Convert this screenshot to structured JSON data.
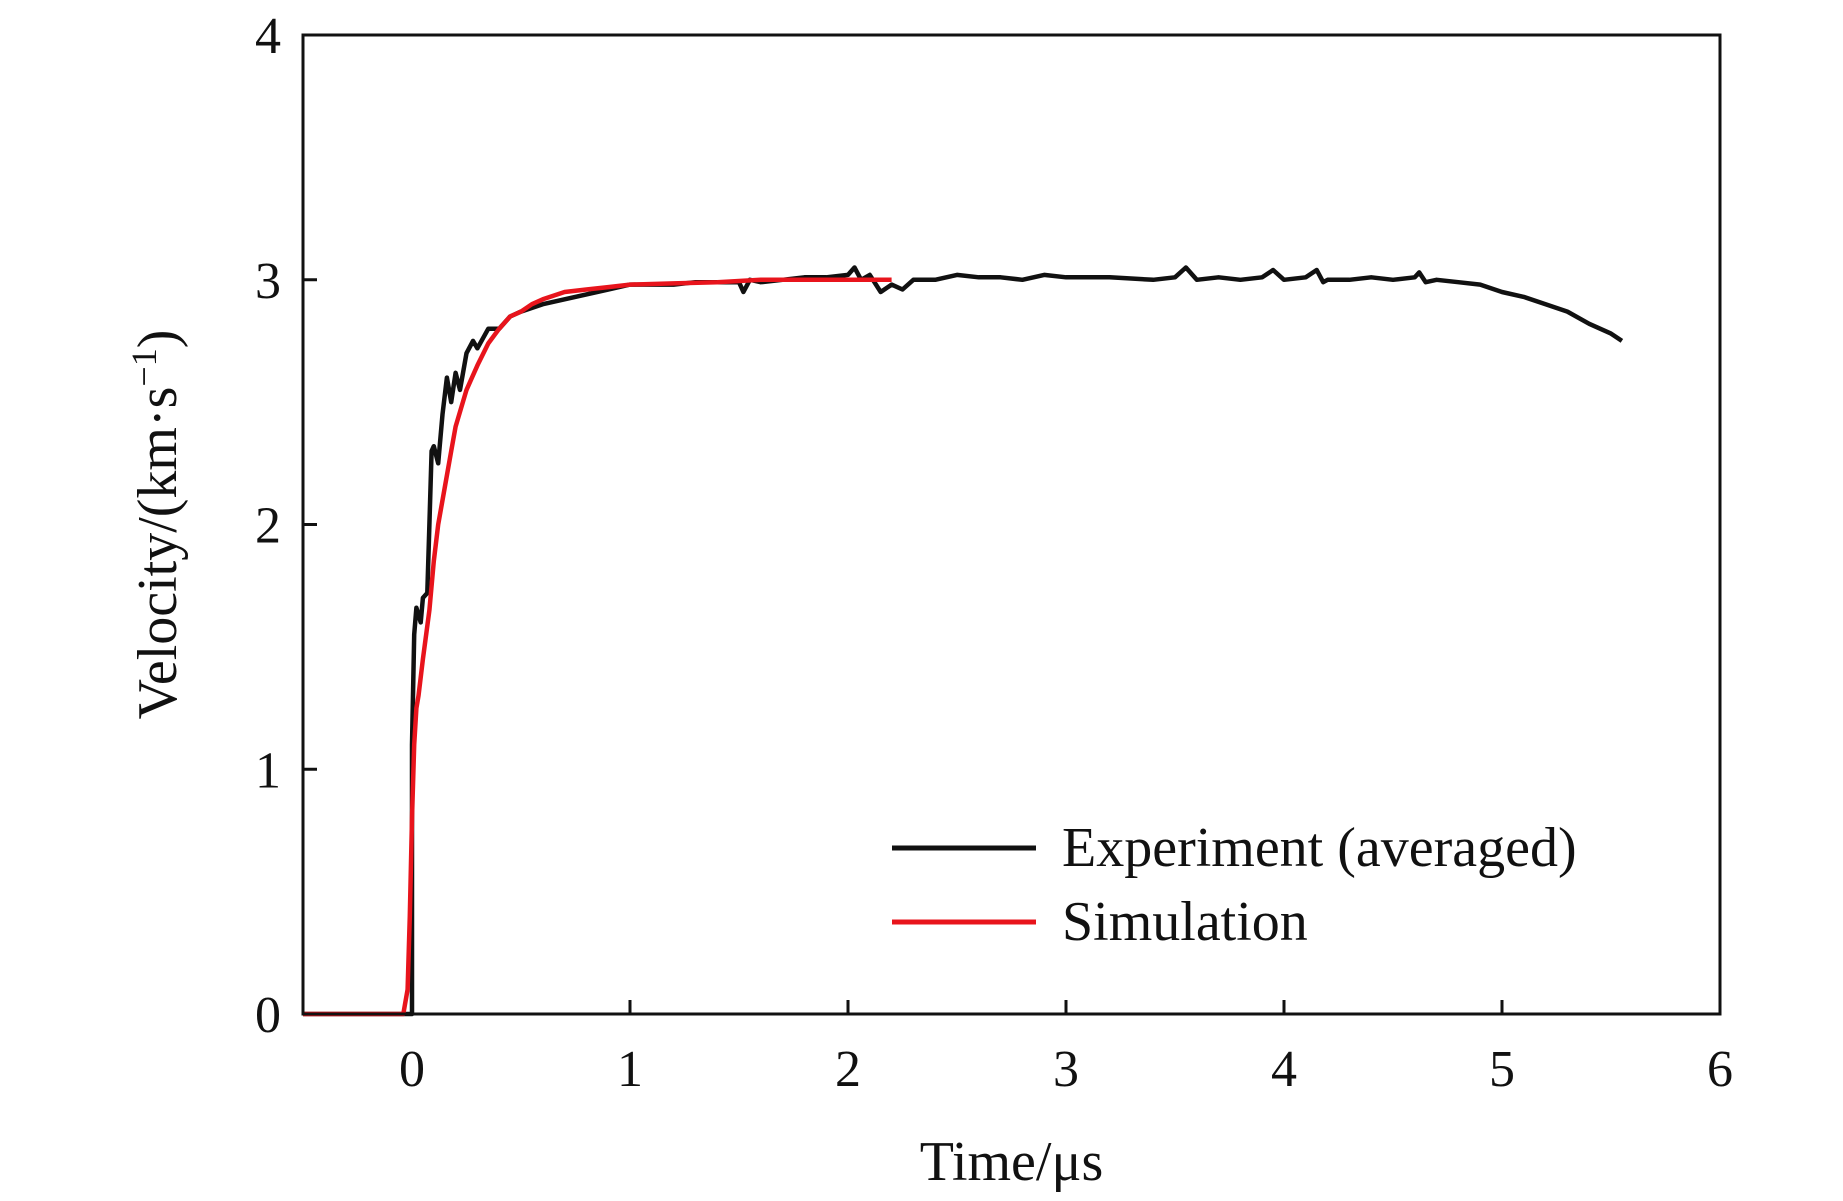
{
  "chart_data": {
    "type": "line",
    "title": "",
    "xlabel": "Time/μs",
    "ylabel": "Velocity/(km·s",
    "ylabel_unit_exponent": "−1",
    "ylabel_close": ")",
    "xlim": [
      -0.5,
      6
    ],
    "ylim": [
      0,
      4
    ],
    "xticks": [
      0,
      1,
      2,
      3,
      4,
      5,
      6
    ],
    "yticks": [
      0,
      1,
      2,
      3,
      4
    ],
    "grid": false,
    "legend_position": "bottom-right",
    "series": [
      {
        "name": "Experiment (averaged)",
        "color": "#111111",
        "x": [
          -0.5,
          -0.02,
          0.0,
          0.0,
          0.01,
          0.02,
          0.04,
          0.05,
          0.07,
          0.08,
          0.09,
          0.1,
          0.12,
          0.14,
          0.16,
          0.18,
          0.2,
          0.22,
          0.25,
          0.28,
          0.3,
          0.35,
          0.4,
          0.45,
          0.5,
          0.6,
          0.7,
          0.8,
          0.9,
          1.0,
          1.1,
          1.2,
          1.3,
          1.4,
          1.5,
          1.52,
          1.55,
          1.6,
          1.7,
          1.8,
          1.9,
          2.0,
          2.03,
          2.06,
          2.1,
          2.15,
          2.2,
          2.25,
          2.3,
          2.4,
          2.5,
          2.6,
          2.7,
          2.8,
          2.9,
          3.0,
          3.2,
          3.4,
          3.5,
          3.55,
          3.6,
          3.7,
          3.8,
          3.9,
          3.95,
          4.0,
          4.1,
          4.15,
          4.18,
          4.2,
          4.3,
          4.4,
          4.5,
          4.6,
          4.62,
          4.65,
          4.7,
          4.8,
          4.9,
          5.0,
          5.1,
          5.2,
          5.3,
          5.4,
          5.5,
          5.55
        ],
        "y": [
          0.0,
          0.0,
          0.0,
          1.1,
          1.55,
          1.66,
          1.6,
          1.7,
          1.72,
          2.0,
          2.3,
          2.32,
          2.25,
          2.45,
          2.6,
          2.5,
          2.62,
          2.55,
          2.7,
          2.75,
          2.72,
          2.8,
          2.8,
          2.85,
          2.87,
          2.9,
          2.92,
          2.94,
          2.96,
          2.98,
          2.98,
          2.98,
          2.99,
          2.99,
          2.99,
          2.95,
          3.0,
          2.99,
          3.0,
          3.01,
          3.01,
          3.02,
          3.05,
          3.0,
          3.02,
          2.95,
          2.98,
          2.96,
          3.0,
          3.0,
          3.02,
          3.01,
          3.01,
          3.0,
          3.02,
          3.01,
          3.01,
          3.0,
          3.01,
          3.05,
          3.0,
          3.01,
          3.0,
          3.01,
          3.04,
          3.0,
          3.01,
          3.04,
          2.99,
          3.0,
          3.0,
          3.01,
          3.0,
          3.01,
          3.03,
          2.99,
          3.0,
          2.99,
          2.98,
          2.95,
          2.93,
          2.9,
          2.87,
          2.82,
          2.78,
          2.75
        ]
      },
      {
        "name": "Simulation",
        "color": "#e8141c",
        "x": [
          -0.5,
          -0.04,
          -0.02,
          -0.01,
          0.0,
          0.01,
          0.02,
          0.03,
          0.05,
          0.08,
          0.1,
          0.12,
          0.15,
          0.18,
          0.2,
          0.25,
          0.3,
          0.35,
          0.4,
          0.45,
          0.5,
          0.55,
          0.6,
          0.7,
          0.8,
          0.9,
          1.0,
          1.2,
          1.4,
          1.6,
          1.8,
          2.0,
          2.2
        ],
        "y": [
          0.0,
          0.0,
          0.1,
          0.4,
          0.8,
          1.1,
          1.25,
          1.3,
          1.45,
          1.65,
          1.85,
          2.0,
          2.15,
          2.3,
          2.4,
          2.55,
          2.65,
          2.74,
          2.8,
          2.85,
          2.87,
          2.9,
          2.92,
          2.95,
          2.96,
          2.97,
          2.98,
          2.985,
          2.99,
          3.0,
          3.0,
          3.0,
          3.0
        ]
      }
    ]
  }
}
